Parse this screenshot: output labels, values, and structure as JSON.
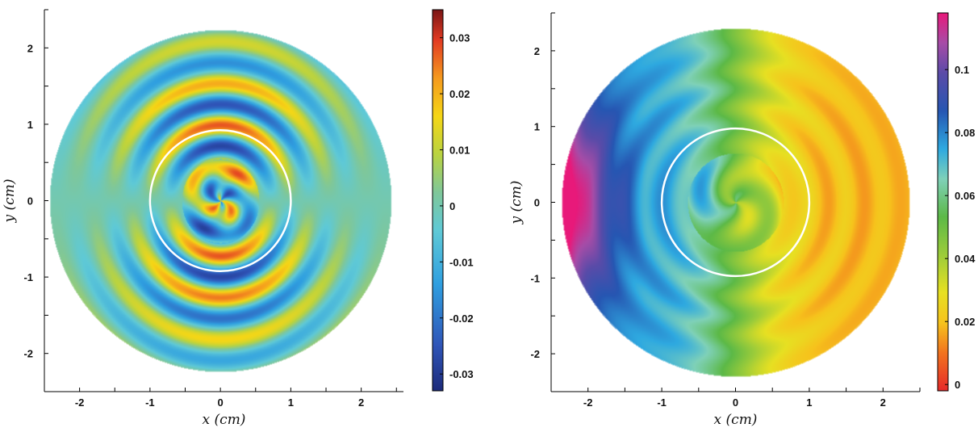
{
  "chart_data": [
    {
      "type": "heatmap",
      "title": "",
      "xlabel": "x (cm)",
      "ylabel": "y (cm)",
      "xlim": [
        -2.5,
        2.6
      ],
      "ylim": [
        -2.5,
        2.5
      ],
      "xticks": [
        -2,
        -1,
        0,
        1,
        2
      ],
      "yticks": [
        -2,
        -1,
        0,
        1,
        2
      ],
      "outer_radius": 2.33,
      "inner_circle_radius": 1.0,
      "inner_circle_color": "#ffffff",
      "colormap": "parula-jet (blue → cyan → green → yellow → red)",
      "colorbar": {
        "min": -0.033,
        "max": 0.035,
        "ticks": [
          0.03,
          0.02,
          0.01,
          0,
          -0.01,
          -0.02,
          -0.03
        ],
        "tick_labels": [
          "0.03",
          "0.02",
          "0.01",
          "0",
          "-0.01",
          "-0.02",
          "-0.03"
        ]
      },
      "grid": false
    },
    {
      "type": "heatmap",
      "title": "",
      "xlabel": "x (cm)",
      "ylabel": "y (cm)",
      "xlim": [
        -2.5,
        2.5
      ],
      "ylim": [
        -2.5,
        2.5
      ],
      "xticks": [
        -2,
        -1,
        0,
        1,
        2
      ],
      "yticks": [
        -2,
        -1,
        0,
        1,
        2
      ],
      "outer_radius": 2.33,
      "inner_circle_radius": 1.0,
      "inner_circle_color": "#ffffff",
      "colormap": "reversed (red → yellow → green → cyan → blue → purple → magenta)",
      "colorbar": {
        "min": -0.002,
        "max": 0.118,
        "ticks": [
          0.1,
          0.08,
          0.06,
          0.04,
          0.02,
          0
        ],
        "tick_labels": [
          "0.1",
          "0.08",
          "0.06",
          "0.04",
          "0.02",
          "0"
        ]
      },
      "grid": false
    }
  ]
}
